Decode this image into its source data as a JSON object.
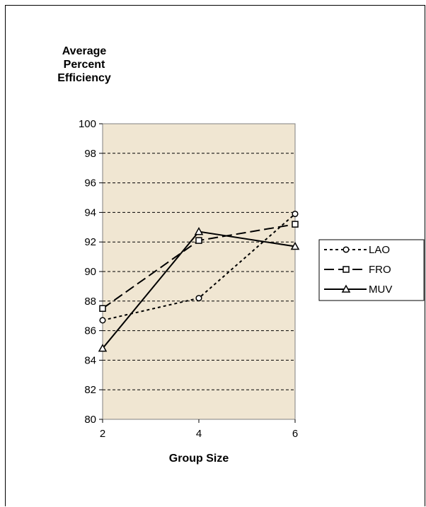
{
  "chart_data": {
    "type": "line",
    "ylabel_lines": [
      "Average",
      "Percent",
      "Efficiency"
    ],
    "xlabel": "Group Size",
    "x": [
      2,
      4,
      6
    ],
    "xticks": [
      "2",
      "4",
      "6"
    ],
    "ylim": [
      80,
      100
    ],
    "yticks": [
      "80",
      "82",
      "84",
      "86",
      "88",
      "90",
      "92",
      "94",
      "96",
      "98",
      "100"
    ],
    "grid": true,
    "plot_background": "#f0e6d2",
    "legend_placement": "right",
    "series": [
      {
        "name": "LAO",
        "values": [
          86.7,
          88.2,
          93.9
        ],
        "marker": "circle",
        "dash": "dotted"
      },
      {
        "name": "FRO",
        "values": [
          87.5,
          92.1,
          93.2
        ],
        "marker": "square",
        "dash": "dashed"
      },
      {
        "name": "MUV",
        "values": [
          84.8,
          92.7,
          91.7
        ],
        "marker": "triangle",
        "dash": "solid"
      }
    ]
  }
}
